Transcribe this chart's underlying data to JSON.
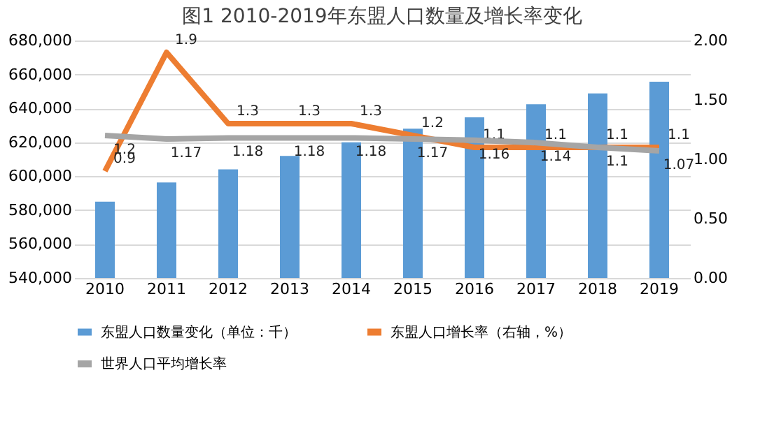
{
  "chart_data": {
    "type": "bar",
    "title": "图1 2010-2019年东盟人口数量及增长率变化",
    "categories": [
      "2010",
      "2011",
      "2012",
      "2013",
      "2014",
      "2015",
      "2016",
      "2017",
      "2018",
      "2019"
    ],
    "series": [
      {
        "name": "东盟人口数量变化（单位：千）",
        "color": "#5b9bd5",
        "values": [
          585000,
          596300,
          604000,
          612000,
          620000,
          628000,
          634700,
          642400,
          648800,
          655700
        ]
      },
      {
        "name": "东盟人口增长率（右轴，%）",
        "type": "line",
        "axis": "y2",
        "color": "#ed7d31",
        "values": [
          0.9,
          1.9,
          1.3,
          1.3,
          1.3,
          1.2,
          1.1,
          1.1,
          1.1,
          1.1
        ],
        "value_labels": [
          "0.9",
          "1.9",
          "1.3",
          "1.3",
          "1.3",
          "1.2",
          "1.1",
          "1.1",
          "1.1",
          "1.1"
        ]
      },
      {
        "name": "世界人口平均增长率",
        "type": "line",
        "axis": "y2",
        "color": "#a5a5a5",
        "values": [
          1.2,
          1.17,
          1.18,
          1.18,
          1.18,
          1.17,
          1.16,
          1.14,
          1.1,
          1.07
        ],
        "value_labels": [
          "1.2",
          "1.17",
          "1.18",
          "1.18",
          "1.18",
          "1.17",
          "1.16",
          "1.14",
          "1.1",
          "1.07"
        ]
      }
    ],
    "ylim": [
      540000,
      680000
    ],
    "yticks": [
      {
        "value": 540000,
        "label": "540,000"
      },
      {
        "value": 560000,
        "label": "560,000"
      },
      {
        "value": 580000,
        "label": "580,000"
      },
      {
        "value": 600000,
        "label": "600,000"
      },
      {
        "value": 620000,
        "label": "620,000"
      },
      {
        "value": 640000,
        "label": "640,000"
      },
      {
        "value": 660000,
        "label": "660,000"
      },
      {
        "value": 680000,
        "label": "680,000"
      }
    ],
    "y2lim": [
      0,
      2
    ],
    "y2ticks": [
      {
        "value": 0,
        "label": "0.00"
      },
      {
        "value": 0.5,
        "label": "0.50"
      },
      {
        "value": 1,
        "label": "1.00"
      },
      {
        "value": 1.5,
        "label": "1.50"
      },
      {
        "value": 2,
        "label": "2.00"
      }
    ],
    "grid": "y",
    "legend": "bottom",
    "marker": "none",
    "line_style": "solid"
  }
}
